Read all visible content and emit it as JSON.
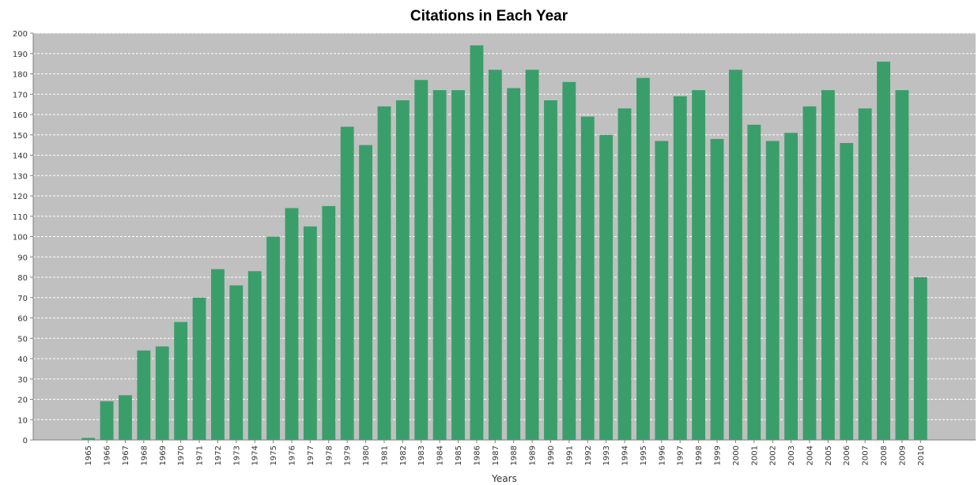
{
  "chart_data": {
    "type": "bar",
    "title": "Citations in Each Year",
    "xlabel": "Years",
    "ylabel": "",
    "ylim": [
      0,
      200
    ],
    "yticks": [
      0,
      10,
      20,
      30,
      40,
      50,
      60,
      70,
      80,
      90,
      100,
      110,
      120,
      130,
      140,
      150,
      160,
      170,
      180,
      190,
      200
    ],
    "grid": true,
    "legend": "none",
    "colors": {
      "bar": "#3a9e6b",
      "plot_background": "#c0c0c0",
      "gridline": "#ffffff",
      "axis": "#7f7f7f",
      "text": "#333333"
    },
    "categories": [
      "1965",
      "1966",
      "1967",
      "1968",
      "1969",
      "1970",
      "1971",
      "1972",
      "1973",
      "1974",
      "1975",
      "1976",
      "1977",
      "1978",
      "1979",
      "1980",
      "1981",
      "1982",
      "1983",
      "1984",
      "1985",
      "1986",
      "1987",
      "1988",
      "1989",
      "1990",
      "1991",
      "1992",
      "1993",
      "1994",
      "1995",
      "1996",
      "1997",
      "1998",
      "1999",
      "2000",
      "2001",
      "2002",
      "2003",
      "2004",
      "2005",
      "2006",
      "2007",
      "2008",
      "2009",
      "2010"
    ],
    "values": [
      1,
      19,
      22,
      44,
      46,
      58,
      70,
      84,
      76,
      83,
      100,
      114,
      105,
      115,
      154,
      145,
      164,
      167,
      177,
      172,
      172,
      194,
      182,
      173,
      182,
      167,
      176,
      159,
      150,
      163,
      178,
      147,
      169,
      172,
      148,
      182,
      155,
      147,
      151,
      164,
      172,
      146,
      163,
      186,
      172,
      80
    ]
  }
}
